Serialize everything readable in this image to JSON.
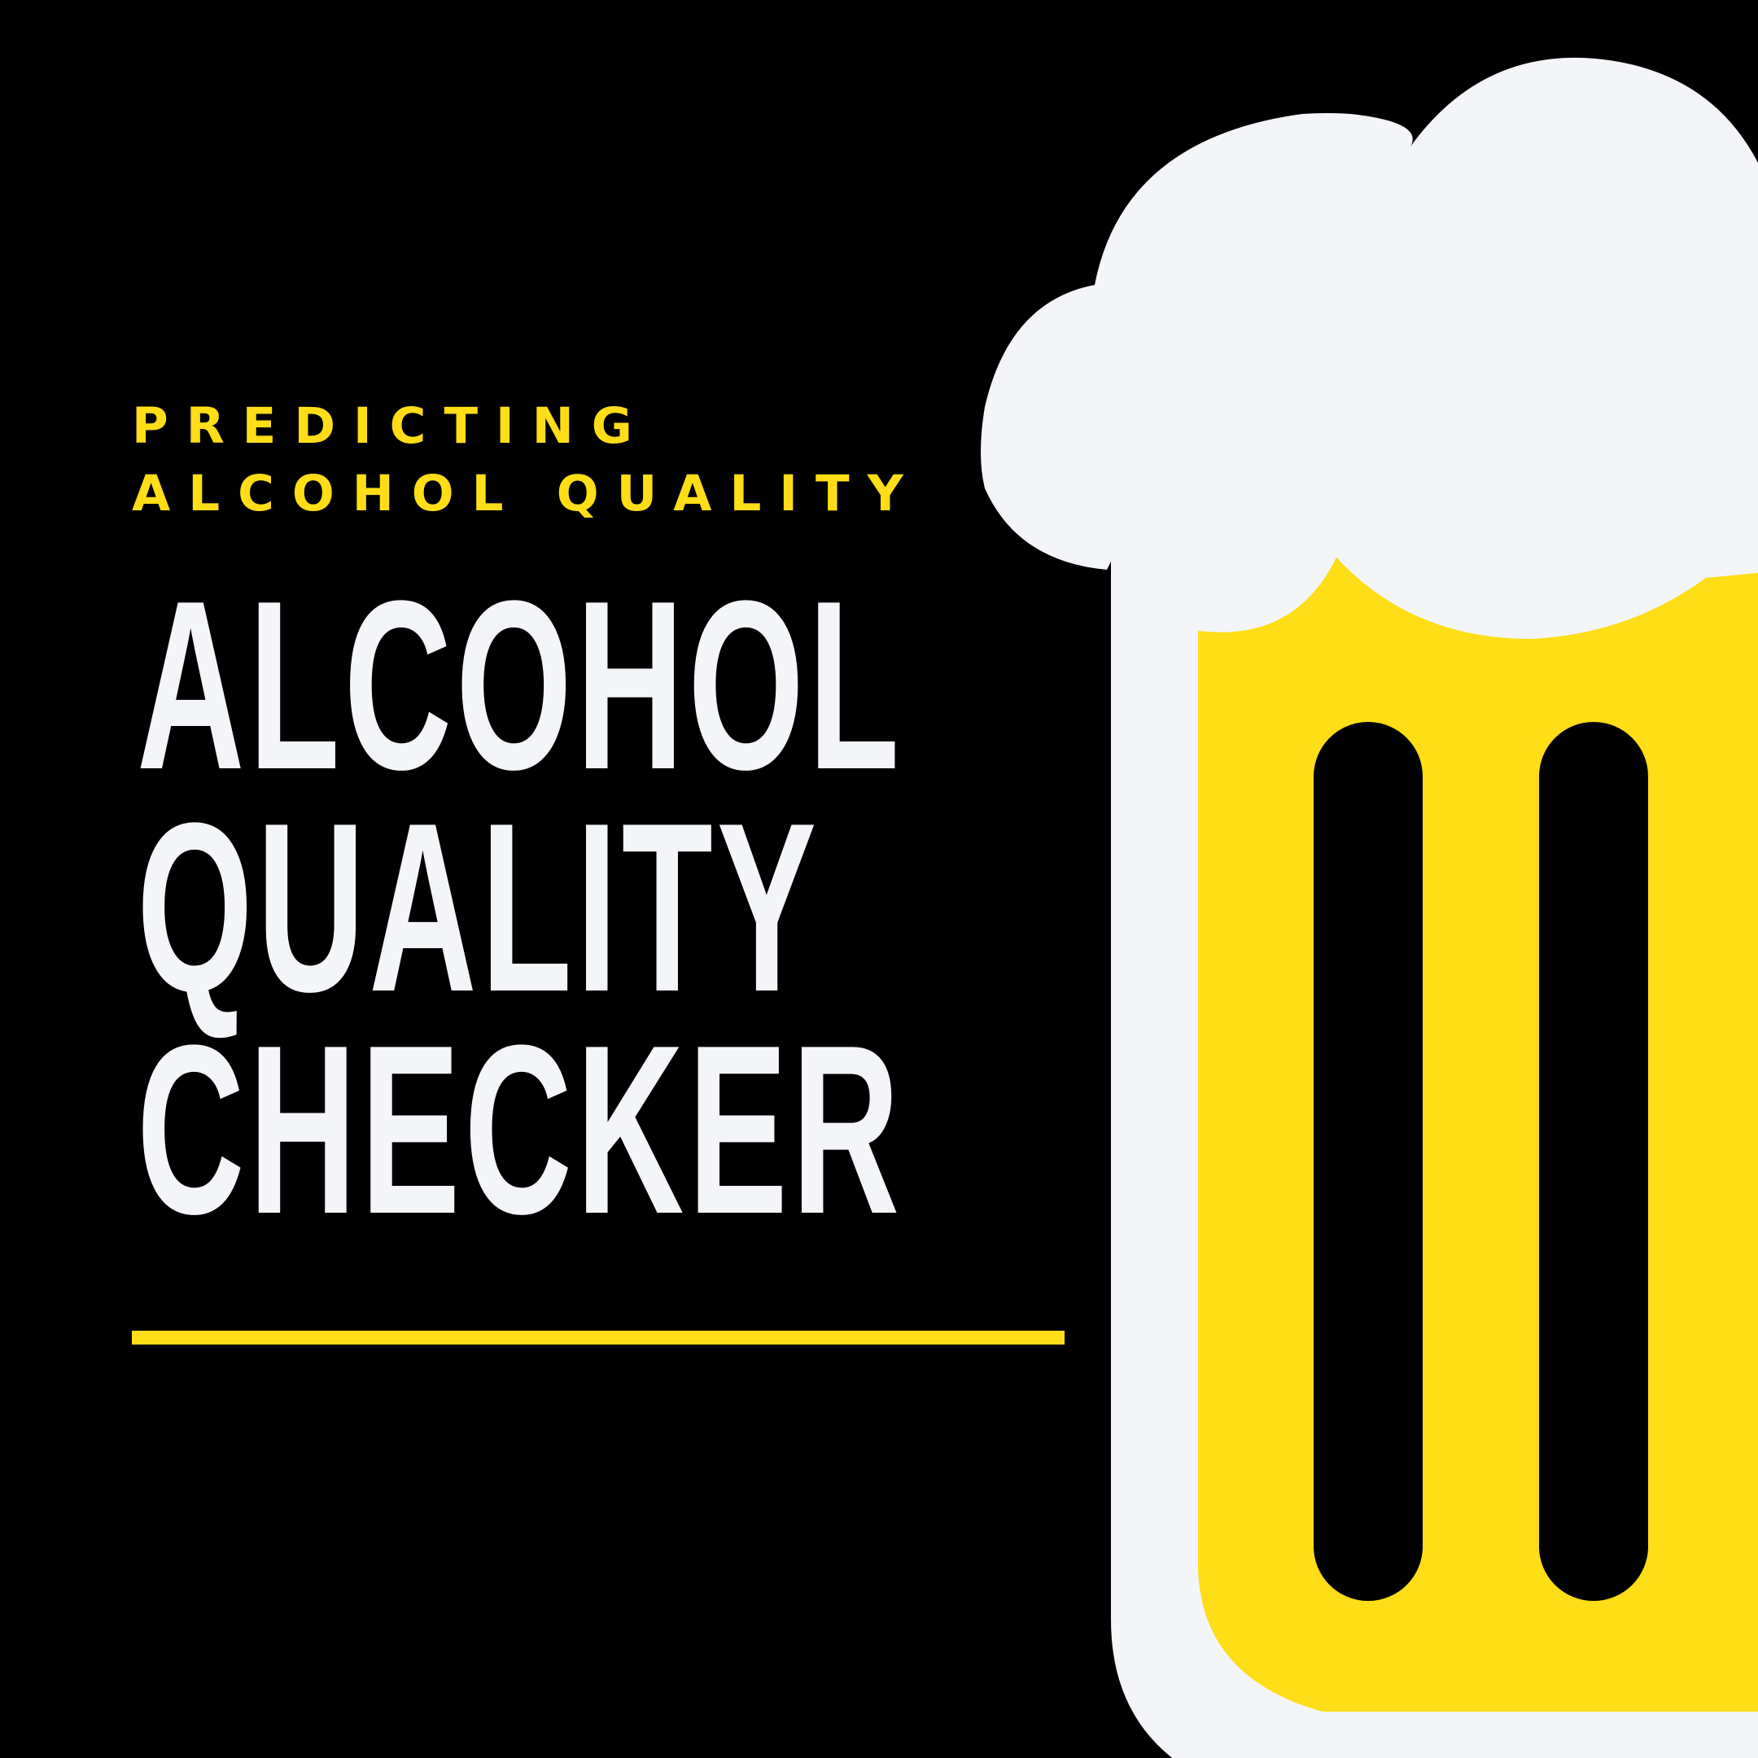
{
  "subtitle": "PREDICTING ALCOHOL QUALITY",
  "headline": {
    "line1": "ALCOHOL",
    "line2": "QUALITY",
    "line3": "CHECKER"
  },
  "colors": {
    "background": "#000000",
    "accent_yellow": "#FFDD17",
    "foam_white": "#F3F5F8",
    "text_white": "#F3F5F8"
  },
  "illustration": {
    "icon": "beer-mug-icon"
  }
}
